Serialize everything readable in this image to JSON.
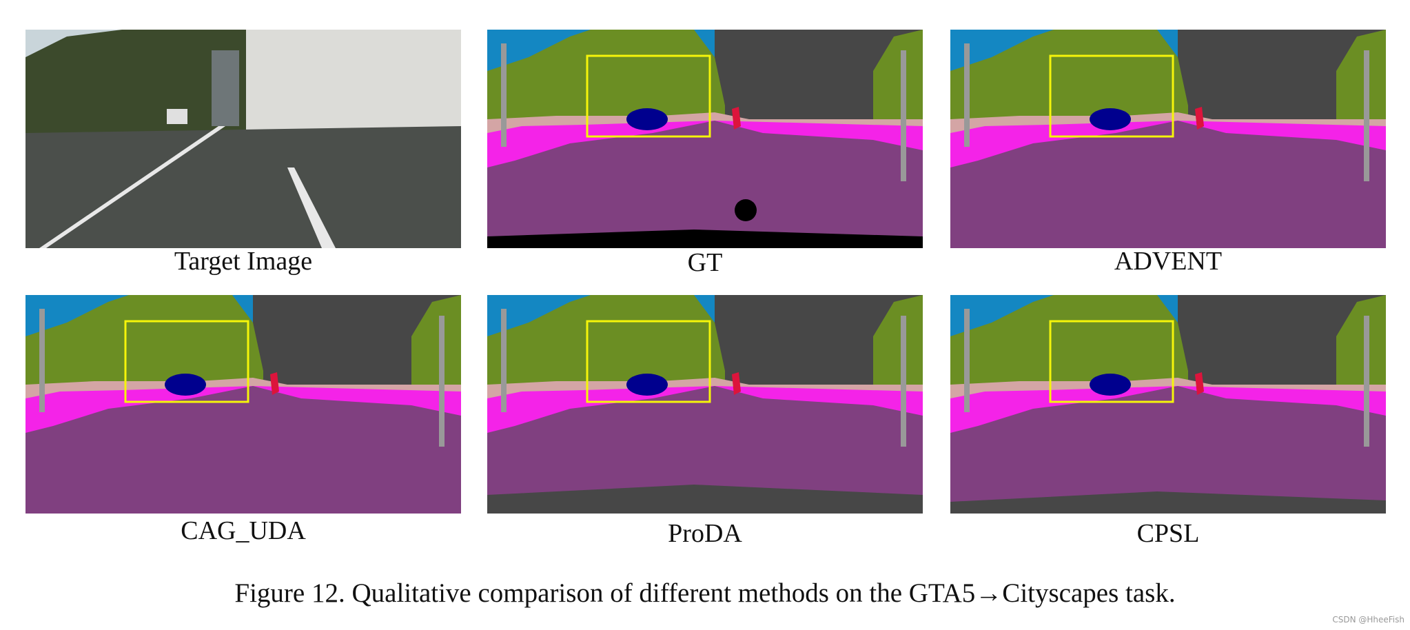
{
  "panels": [
    {
      "label": "Target Image"
    },
    {
      "label": "GT"
    },
    {
      "label": "ADVENT"
    },
    {
      "label": "CAG_UDA"
    },
    {
      "label": "ProDA"
    },
    {
      "label": "CPSL"
    }
  ],
  "caption": "Figure 12. Qualitative comparison of different methods on the GTA5→Cityscapes task.",
  "watermark": "CSDN @HheeFish"
}
